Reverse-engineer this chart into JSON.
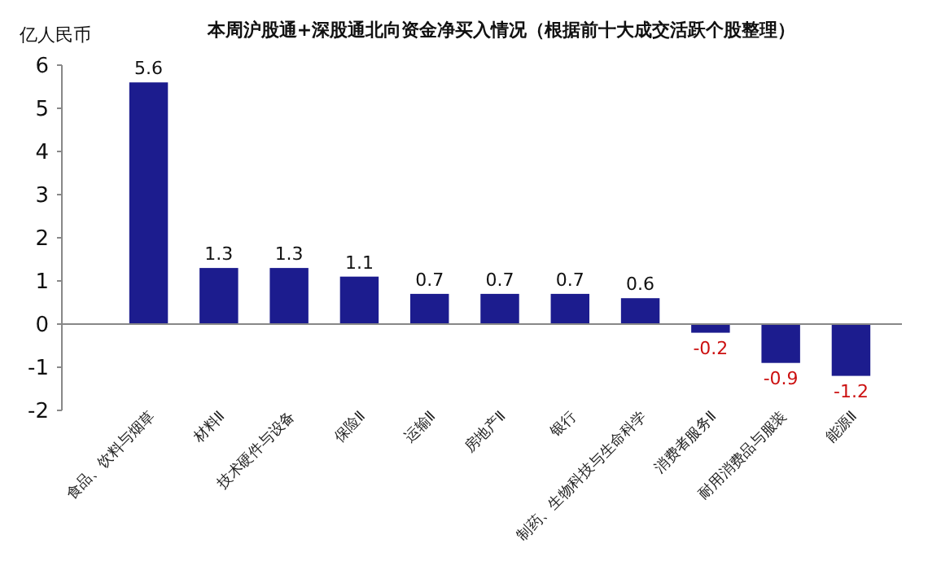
{
  "chart_data": {
    "type": "bar",
    "title": "本周沪股通+深股通北向资金净买入情况（根据前十大成交活跃个股整理）",
    "ylabel": "亿人民币",
    "categories": [
      "食品、饮料与烟草",
      "材料Ⅱ",
      "技术硬件与设备",
      "保险Ⅱ",
      "运输Ⅱ",
      "房地产Ⅱ",
      "银行",
      "制药、生物科技与生命科学",
      "消费者服务Ⅱ",
      "耐用消费品与服装",
      "能源Ⅱ"
    ],
    "values": [
      5.6,
      1.3,
      1.3,
      1.1,
      0.7,
      0.7,
      0.7,
      0.6,
      -0.2,
      -0.9,
      -1.2
    ],
    "color": "#1c1c8e",
    "ylim": [
      -2,
      6
    ],
    "yticks": [
      -2,
      -1,
      0,
      1,
      2,
      3,
      4,
      5,
      6
    ],
    "data_labels": true
  }
}
